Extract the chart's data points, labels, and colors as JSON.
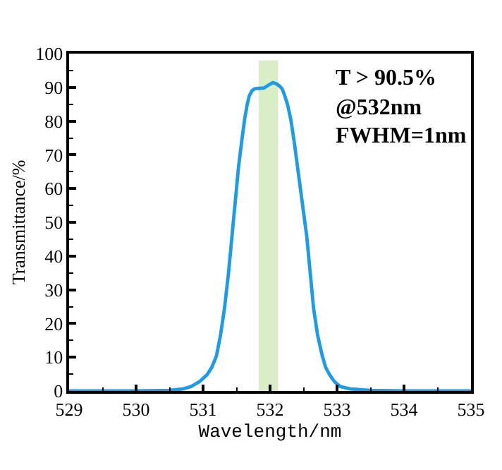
{
  "chart_data": {
    "type": "line",
    "xlabel": "Wavelength/nm",
    "ylabel": "Transmittance/%",
    "x": [
      529,
      530,
      530.5,
      530.7,
      530.82,
      530.95,
      531.06,
      531.13,
      531.2,
      531.26,
      531.32,
      531.38,
      531.43,
      531.48,
      531.53,
      531.58,
      531.62,
      531.66,
      531.69,
      531.73,
      531.77,
      531.84,
      531.91,
      531.97,
      532.04,
      532.1,
      532.14,
      532.18,
      532.22,
      532.26,
      532.31,
      532.36,
      532.41,
      532.48,
      532.55,
      532.6,
      532.65,
      532.71,
      532.78,
      532.83,
      532.89,
      532.96,
      533.05,
      533.2,
      533.5,
      534,
      535
    ],
    "series": [
      {
        "color": "#1e9be6",
        "values": [
          0,
          0,
          0.2,
          0.6,
          1.3,
          2.8,
          4.8,
          7,
          10.4,
          16.5,
          24.5,
          35,
          45.5,
          56,
          66.5,
          74.5,
          80.5,
          85,
          87.5,
          89,
          89.6,
          89.7,
          89.8,
          90.6,
          91.4,
          91,
          90.4,
          89.6,
          87.5,
          85,
          80.5,
          74,
          66.5,
          56,
          45.5,
          35,
          24.5,
          16.5,
          10.4,
          7,
          4.8,
          2.8,
          1.3,
          0.6,
          0.2,
          0,
          0
        ]
      }
    ],
    "xlim": [
      529,
      535
    ],
    "ylim": [
      0,
      100
    ],
    "xticks": [
      529,
      {
        "value": 529.5,
        "label": null
      },
      530,
      {
        "value": 530.5,
        "label": null
      },
      531,
      {
        "value": 531.5,
        "label": null
      },
      532,
      {
        "value": 532.5,
        "label": null
      },
      533,
      {
        "value": 533.5,
        "label": null
      },
      534,
      {
        "value": 534.5,
        "label": null
      },
      535
    ],
    "yticks": [
      0,
      {
        "value": 5,
        "label": null
      },
      10,
      {
        "value": 15,
        "label": null
      },
      20,
      {
        "value": 25,
        "label": null
      },
      30,
      {
        "value": 35,
        "label": null
      },
      40,
      {
        "value": 45,
        "label": null
      },
      50,
      {
        "value": 55,
        "label": null
      },
      60,
      {
        "value": 65,
        "label": null
      },
      70,
      {
        "value": 75,
        "label": null
      },
      80,
      {
        "value": 85,
        "label": null
      },
      90,
      {
        "value": 95,
        "label": null
      },
      100
    ],
    "bands": [
      {
        "axis": "x",
        "from": 531.83,
        "to": 532.12,
        "color": "#d9edc6"
      }
    ],
    "annotations": [
      "T > 90.5%",
      "@532nm",
      "FWHM=1nm"
    ],
    "line_style": "solid",
    "marker": "none"
  }
}
